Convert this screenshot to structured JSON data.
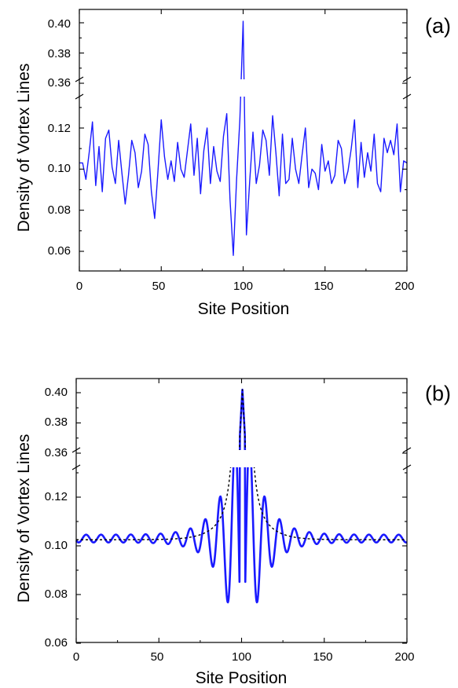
{
  "chart_data": [
    {
      "panel_label": "(a)",
      "type": "line",
      "xlabel": "Site Position",
      "ylabel": "Density of Vortex Lines",
      "xlim": [
        0,
        200
      ],
      "xticks": [
        0,
        50,
        100,
        150,
        200
      ],
      "broken_y_axis": true,
      "ylim_lower": [
        0.05,
        0.135
      ],
      "ylim_upper": [
        0.36,
        0.41
      ],
      "yticks_lower": [
        0.06,
        0.08,
        0.1,
        0.12
      ],
      "yticks_upper": [
        0.36,
        0.38,
        0.4
      ],
      "tick_labels_lower": [
        "0.06",
        "0.08",
        "0.10",
        "0.12"
      ],
      "tick_labels_upper": [
        "0.36",
        "0.38",
        "0.40"
      ],
      "grid": false,
      "series": [
        {
          "color": "#1a1aff",
          "style": "solid",
          "x": [
            0,
            2,
            4,
            6,
            8,
            10,
            12,
            14,
            16,
            18,
            20,
            22,
            24,
            26,
            28,
            30,
            32,
            34,
            36,
            38,
            40,
            42,
            44,
            46,
            48,
            50,
            52,
            54,
            56,
            58,
            60,
            62,
            64,
            66,
            68,
            70,
            72,
            74,
            76,
            78,
            80,
            82,
            84,
            86,
            88,
            90,
            92,
            94,
            96,
            98,
            100,
            102,
            104,
            106,
            108,
            110,
            112,
            114,
            116,
            118,
            120,
            122,
            124,
            126,
            128,
            130,
            132,
            134,
            136,
            138,
            140,
            142,
            144,
            146,
            148,
            150,
            152,
            154,
            156,
            158,
            160,
            162,
            164,
            166,
            168,
            170,
            172,
            174,
            176,
            178,
            180,
            182,
            184,
            186,
            188,
            190,
            192,
            194,
            196,
            198,
            200
          ],
          "y": [
            0.103,
            0.103,
            0.095,
            0.108,
            0.123,
            0.092,
            0.111,
            0.089,
            0.115,
            0.119,
            0.101,
            0.093,
            0.114,
            0.098,
            0.083,
            0.097,
            0.114,
            0.108,
            0.091,
            0.099,
            0.117,
            0.112,
            0.089,
            0.076,
            0.099,
            0.124,
            0.106,
            0.095,
            0.104,
            0.094,
            0.113,
            0.1,
            0.096,
            0.109,
            0.122,
            0.097,
            0.115,
            0.088,
            0.109,
            0.12,
            0.093,
            0.111,
            0.099,
            0.094,
            0.116,
            0.127,
            0.085,
            0.058,
            0.095,
            0.124,
            0.401,
            0.068,
            0.094,
            0.118,
            0.093,
            0.102,
            0.119,
            0.114,
            0.097,
            0.126,
            0.108,
            0.087,
            0.117,
            0.093,
            0.095,
            0.115,
            0.1,
            0.093,
            0.107,
            0.12,
            0.091,
            0.1,
            0.098,
            0.09,
            0.112,
            0.099,
            0.104,
            0.093,
            0.097,
            0.114,
            0.11,
            0.093,
            0.099,
            0.11,
            0.124,
            0.091,
            0.113,
            0.096,
            0.108,
            0.099,
            0.117,
            0.093,
            0.089,
            0.115,
            0.108,
            0.114,
            0.107,
            0.122,
            0.089,
            0.104,
            0.103
          ]
        }
      ]
    },
    {
      "panel_label": "(b)",
      "type": "line",
      "xlabel": "Site Position",
      "ylabel": "Density of Vortex Lines",
      "xlim": [
        0,
        200
      ],
      "xticks": [
        0,
        50,
        100,
        150,
        200
      ],
      "broken_y_axis": true,
      "ylim_lower": [
        0.06,
        0.135
      ],
      "ylim_upper": [
        0.36,
        0.41
      ],
      "yticks_lower": [
        0.06,
        0.08,
        0.1,
        0.12
      ],
      "yticks_upper": [
        0.36,
        0.38,
        0.4
      ],
      "tick_labels_lower": [
        "0.06",
        "0.08",
        "0.10",
        "0.12"
      ],
      "tick_labels_upper": [
        "0.36",
        "0.38",
        "0.40"
      ],
      "grid": false,
      "series": [
        {
          "color": "#1a1aff",
          "style": "solid",
          "model": "oscillation",
          "center": 100.5,
          "base": 0.103,
          "period": 9.0
        },
        {
          "color": "#000000",
          "style": "dashed",
          "model": "envelope",
          "center": 100.5,
          "base": 0.1025
        }
      ]
    }
  ]
}
